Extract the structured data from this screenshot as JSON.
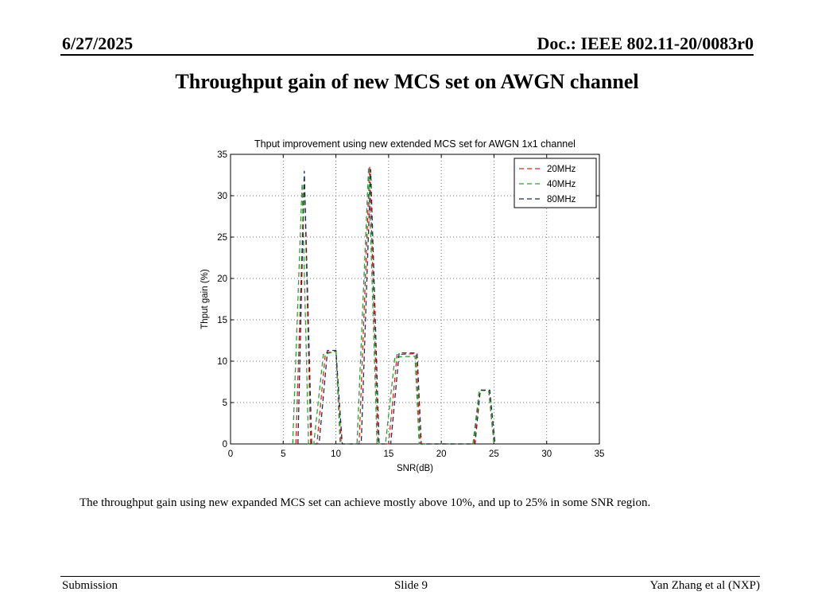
{
  "header": {
    "date": "6/27/2025",
    "doc_id": "Doc.: IEEE 802.11-20/0083r0"
  },
  "slide": {
    "title": "Throughput gain of new MCS set on AWGN channel",
    "caption": "The throughput gain using new expanded MCS set can achieve mostly above 10%, and up to 25% in some SNR region."
  },
  "footer": {
    "left": "Submission",
    "center": "Slide 9",
    "right": "Yan Zhang et al (NXP)"
  },
  "chart_data": {
    "type": "line",
    "title": "Thput improvement using new extended MCS set for AWGN 1x1 channel",
    "xlabel": "SNR(dB)",
    "ylabel": "Thput gain (%)",
    "xlim": [
      0,
      35
    ],
    "ylim": [
      0,
      35
    ],
    "xticks": [
      0,
      5,
      10,
      15,
      20,
      25,
      30,
      35
    ],
    "yticks": [
      0,
      5,
      10,
      15,
      20,
      25,
      30,
      35
    ],
    "grid": true,
    "legend_position": "top-right",
    "series": [
      {
        "name": "20MHz",
        "color": "#d62728",
        "dash": true,
        "points": [
          [
            6.2,
            0
          ],
          [
            7.0,
            32.5
          ],
          [
            7.6,
            0
          ],
          [
            8.2,
            0
          ],
          [
            9.0,
            11.0
          ],
          [
            10.0,
            11.2
          ],
          [
            10.5,
            0
          ],
          [
            12.2,
            0
          ],
          [
            13.2,
            33.5
          ],
          [
            14.0,
            0
          ],
          [
            15.0,
            0
          ],
          [
            15.8,
            10.8
          ],
          [
            17.6,
            10.9
          ],
          [
            18.0,
            0
          ],
          [
            23.1,
            0
          ],
          [
            23.6,
            6.5
          ],
          [
            24.5,
            6.5
          ],
          [
            25.0,
            0
          ]
        ]
      },
      {
        "name": "40MHz",
        "color": "#2ca02c",
        "dash": true,
        "points": [
          [
            5.9,
            0
          ],
          [
            6.8,
            31.5
          ],
          [
            7.4,
            0
          ],
          [
            7.9,
            0
          ],
          [
            8.8,
            10.8
          ],
          [
            10.0,
            11.2
          ],
          [
            10.4,
            0
          ],
          [
            12.0,
            0
          ],
          [
            13.1,
            33.5
          ],
          [
            13.9,
            0
          ],
          [
            14.7,
            0
          ],
          [
            15.6,
            10.5
          ],
          [
            17.5,
            10.6
          ],
          [
            17.9,
            0
          ],
          [
            23.0,
            0
          ],
          [
            23.6,
            6.5
          ],
          [
            24.5,
            6.4
          ],
          [
            25.0,
            0
          ]
        ]
      },
      {
        "name": "80MHz",
        "color": "#1f2f4f",
        "dash": true,
        "points": [
          [
            6.4,
            0
          ],
          [
            7.0,
            33.0
          ],
          [
            7.7,
            0
          ],
          [
            8.4,
            0
          ],
          [
            9.2,
            11.3
          ],
          [
            10.0,
            11.3
          ],
          [
            10.6,
            0
          ],
          [
            12.4,
            0
          ],
          [
            13.3,
            33.2
          ],
          [
            14.1,
            0
          ],
          [
            15.2,
            0
          ],
          [
            16.0,
            11.0
          ],
          [
            17.7,
            11.0
          ],
          [
            18.1,
            0
          ],
          [
            23.2,
            0
          ],
          [
            23.7,
            6.5
          ],
          [
            24.6,
            6.5
          ],
          [
            25.1,
            0
          ]
        ]
      }
    ]
  }
}
